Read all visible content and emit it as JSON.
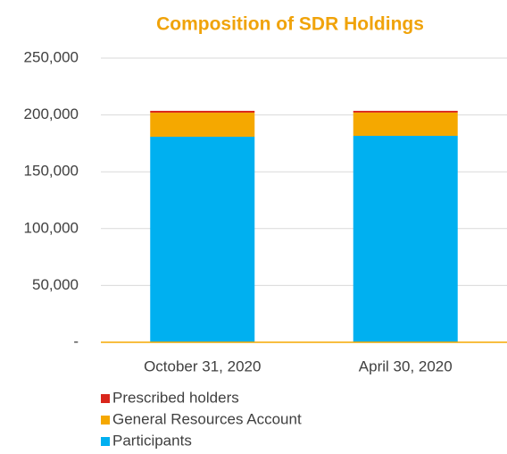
{
  "chart_data": {
    "type": "stacked_bar",
    "title": "Composition of SDR Holdings",
    "categories": [
      "October 31, 2020",
      "April 30, 2020"
    ],
    "series": [
      {
        "name": "Participants",
        "color": "#00b0f0",
        "values": [
          180800,
          181600
        ]
      },
      {
        "name": "General Resources Account",
        "color": "#f5a800",
        "values": [
          21200,
          20500
        ]
      },
      {
        "name": "Prescribed holders",
        "color": "#d9261c",
        "values": [
          1600,
          1500
        ]
      }
    ],
    "ylim": [
      0,
      250000
    ],
    "yticks": [
      {
        "value": 0,
        "label": "-"
      },
      {
        "value": 50000,
        "label": "50,000"
      },
      {
        "value": 100000,
        "label": "100,000"
      },
      {
        "value": 150000,
        "label": "150,000"
      },
      {
        "value": 200000,
        "label": "200,000"
      },
      {
        "value": 250000,
        "label": "250,000"
      }
    ],
    "grid": true,
    "legend": "bottom-left"
  }
}
